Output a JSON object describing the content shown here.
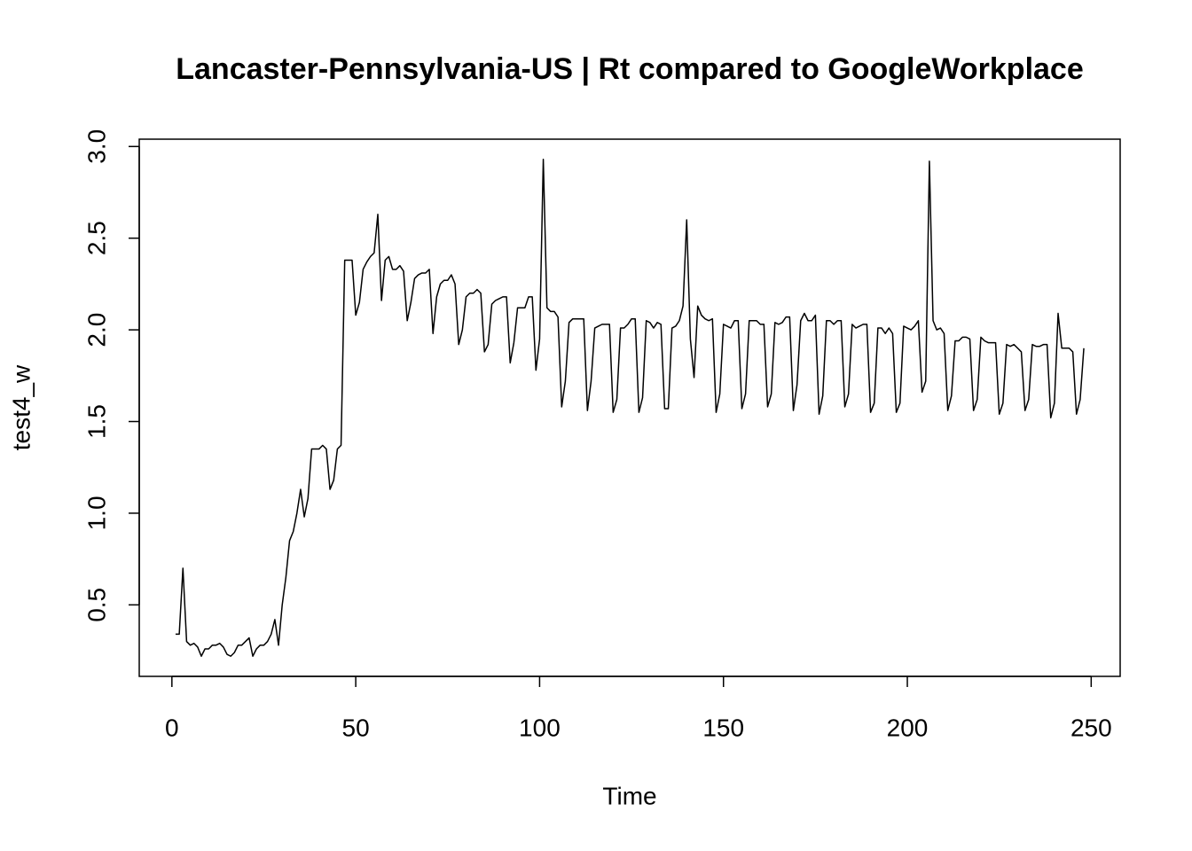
{
  "chart_data": {
    "type": "line",
    "title": "Lancaster-Pennsylvania-US | Rt compared to GoogleWorkplace",
    "x_label": "Time",
    "y_label": "test4_w",
    "color": "#000000",
    "xlim": [
      -8.88,
      257.88
    ],
    "ylim": [
      0.11,
      3.04
    ],
    "xticks": [
      0,
      50,
      100,
      150,
      200,
      250
    ],
    "yticks": [
      0.5,
      {
        "value": 1.0,
        "label": "1.0"
      },
      1.5,
      {
        "value": 2.0,
        "label": "2.0"
      },
      2.5,
      {
        "value": 3.0,
        "label": "3.0"
      }
    ],
    "x": [
      1,
      2,
      3,
      4,
      5,
      6,
      7,
      8,
      9,
      10,
      11,
      12,
      13,
      14,
      15,
      16,
      17,
      18,
      19,
      20,
      21,
      22,
      23,
      24,
      25,
      26,
      27,
      28,
      29,
      30,
      31,
      32,
      33,
      34,
      35,
      36,
      37,
      38,
      39,
      40,
      41,
      42,
      43,
      44,
      45,
      46,
      47,
      48,
      49,
      50,
      51,
      52,
      53,
      54,
      55,
      56,
      57,
      58,
      59,
      60,
      61,
      62,
      63,
      64,
      65,
      66,
      67,
      68,
      69,
      70,
      71,
      72,
      73,
      74,
      75,
      76,
      77,
      78,
      79,
      80,
      81,
      82,
      83,
      84,
      85,
      86,
      87,
      88,
      89,
      90,
      91,
      92,
      93,
      94,
      95,
      96,
      97,
      98,
      99,
      100,
      101,
      102,
      103,
      104,
      105,
      106,
      107,
      108,
      109,
      110,
      111,
      112,
      113,
      114,
      115,
      116,
      117,
      118,
      119,
      120,
      121,
      122,
      123,
      124,
      125,
      126,
      127,
      128,
      129,
      130,
      131,
      132,
      133,
      134,
      135,
      136,
      137,
      138,
      139,
      140,
      141,
      142,
      143,
      144,
      145,
      146,
      147,
      148,
      149,
      150,
      151,
      152,
      153,
      154,
      155,
      156,
      157,
      158,
      159,
      160,
      161,
      162,
      163,
      164,
      165,
      166,
      167,
      168,
      169,
      170,
      171,
      172,
      173,
      174,
      175,
      176,
      177,
      178,
      179,
      180,
      181,
      182,
      183,
      184,
      185,
      186,
      187,
      188,
      189,
      190,
      191,
      192,
      193,
      194,
      195,
      196,
      197,
      198,
      199,
      200,
      201,
      202,
      203,
      204,
      205,
      206,
      207,
      208,
      209,
      210,
      211,
      212,
      213,
      214,
      215,
      216,
      217,
      218,
      219,
      220,
      221,
      222,
      223,
      224,
      225,
      226,
      227,
      228,
      229,
      230,
      231,
      232,
      233,
      234,
      235,
      236,
      237,
      238,
      239,
      240,
      241,
      242,
      243,
      244,
      245,
      246,
      247,
      248
    ],
    "values": [
      0.34,
      0.34,
      0.7,
      0.3,
      0.28,
      0.29,
      0.27,
      0.22,
      0.26,
      0.26,
      0.28,
      0.28,
      0.29,
      0.27,
      0.23,
      0.22,
      0.24,
      0.28,
      0.28,
      0.3,
      0.32,
      0.22,
      0.26,
      0.28,
      0.28,
      0.3,
      0.34,
      0.42,
      0.28,
      0.5,
      0.65,
      0.85,
      0.9,
      1.0,
      1.13,
      0.98,
      1.08,
      1.35,
      1.35,
      1.35,
      1.37,
      1.35,
      1.13,
      1.18,
      1.35,
      1.37,
      2.38,
      2.38,
      2.38,
      2.08,
      2.15,
      2.33,
      2.37,
      2.4,
      2.42,
      2.63,
      2.16,
      2.38,
      2.4,
      2.33,
      2.33,
      2.35,
      2.32,
      2.05,
      2.15,
      2.28,
      2.3,
      2.31,
      2.31,
      2.33,
      1.98,
      2.18,
      2.25,
      2.27,
      2.27,
      2.3,
      2.25,
      1.92,
      2.0,
      2.18,
      2.2,
      2.2,
      2.22,
      2.2,
      1.88,
      1.92,
      2.14,
      2.16,
      2.17,
      2.18,
      2.18,
      1.82,
      1.93,
      2.12,
      2.12,
      2.12,
      2.18,
      2.18,
      1.78,
      1.95,
      2.93,
      2.12,
      2.1,
      2.1,
      2.07,
      1.58,
      1.72,
      2.04,
      2.06,
      2.06,
      2.06,
      2.06,
      1.56,
      1.72,
      2.01,
      2.02,
      2.03,
      2.03,
      2.03,
      1.55,
      1.62,
      2.01,
      2.01,
      2.03,
      2.06,
      2.06,
      1.55,
      1.63,
      2.05,
      2.04,
      2.01,
      2.04,
      2.03,
      1.57,
      1.57,
      2.01,
      2.02,
      2.05,
      2.13,
      2.6,
      1.95,
      1.74,
      2.13,
      2.08,
      2.06,
      2.05,
      2.06,
      1.55,
      1.65,
      2.03,
      2.02,
      2.01,
      2.05,
      2.05,
      1.57,
      1.65,
      2.05,
      2.05,
      2.05,
      2.03,
      2.03,
      1.58,
      1.65,
      2.04,
      2.03,
      2.04,
      2.07,
      2.07,
      1.56,
      1.7,
      2.05,
      2.09,
      2.05,
      2.05,
      2.08,
      1.54,
      1.64,
      2.05,
      2.05,
      2.03,
      2.05,
      2.05,
      1.58,
      1.65,
      2.03,
      2.01,
      2.02,
      2.03,
      2.03,
      1.55,
      1.6,
      2.01,
      2.01,
      1.98,
      2.01,
      1.98,
      1.55,
      1.6,
      2.02,
      2.01,
      2.0,
      2.02,
      2.05,
      1.66,
      1.72,
      2.92,
      2.05,
      2.0,
      2.01,
      1.98,
      1.56,
      1.64,
      1.94,
      1.94,
      1.96,
      1.96,
      1.95,
      1.56,
      1.62,
      1.96,
      1.94,
      1.93,
      1.93,
      1.93,
      1.54,
      1.6,
      1.92,
      1.91,
      1.92,
      1.9,
      1.88,
      1.56,
      1.62,
      1.92,
      1.91,
      1.91,
      1.92,
      1.92,
      1.52,
      1.6,
      2.09,
      1.9,
      1.9,
      1.9,
      1.88,
      1.54,
      1.62,
      1.9
    ]
  }
}
